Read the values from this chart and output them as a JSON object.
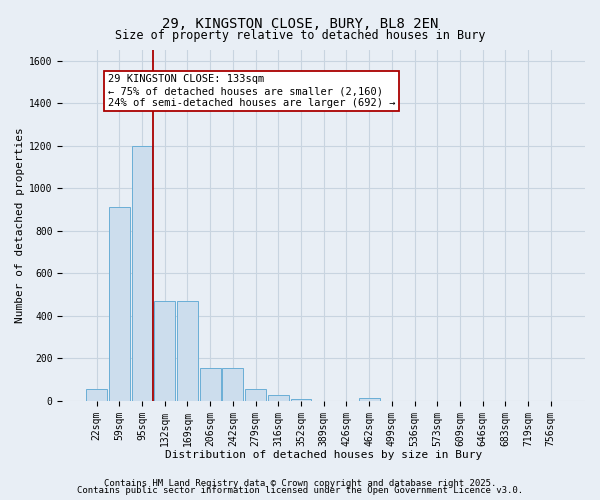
{
  "title_line1": "29, KINGSTON CLOSE, BURY, BL8 2EN",
  "title_line2": "Size of property relative to detached houses in Bury",
  "xlabel": "Distribution of detached houses by size in Bury",
  "ylabel": "Number of detached properties",
  "bar_color": "#ccdded",
  "bar_edge_color": "#6aaed6",
  "categories": [
    "22sqm",
    "59sqm",
    "95sqm",
    "132sqm",
    "169sqm",
    "206sqm",
    "242sqm",
    "279sqm",
    "316sqm",
    "352sqm",
    "389sqm",
    "426sqm",
    "462sqm",
    "499sqm",
    "536sqm",
    "573sqm",
    "609sqm",
    "646sqm",
    "683sqm",
    "719sqm",
    "756sqm"
  ],
  "values": [
    55,
    910,
    1200,
    470,
    470,
    155,
    155,
    55,
    28,
    10,
    0,
    0,
    15,
    0,
    0,
    0,
    0,
    0,
    0,
    0,
    0
  ],
  "ylim": [
    0,
    1650
  ],
  "yticks": [
    0,
    200,
    400,
    600,
    800,
    1000,
    1200,
    1400,
    1600
  ],
  "vline_x_idx": 2.5,
  "vline_color": "#aa0000",
  "annotation_text": "29 KINGSTON CLOSE: 133sqm\n← 75% of detached houses are smaller (2,160)\n24% of semi-detached houses are larger (692) →",
  "annotation_box_facecolor": "#ffffff",
  "annotation_box_edgecolor": "#aa0000",
  "footer_line1": "Contains HM Land Registry data © Crown copyright and database right 2025.",
  "footer_line2": "Contains public sector information licensed under the Open Government Licence v3.0.",
  "bg_color": "#e8eef5",
  "plot_bg_color": "#e8eef5",
  "grid_color": "#c8d4e0",
  "title_fontsize": 10,
  "subtitle_fontsize": 8.5,
  "axis_label_fontsize": 8,
  "tick_fontsize": 7,
  "annotation_fontsize": 7.5,
  "footer_fontsize": 6.5
}
